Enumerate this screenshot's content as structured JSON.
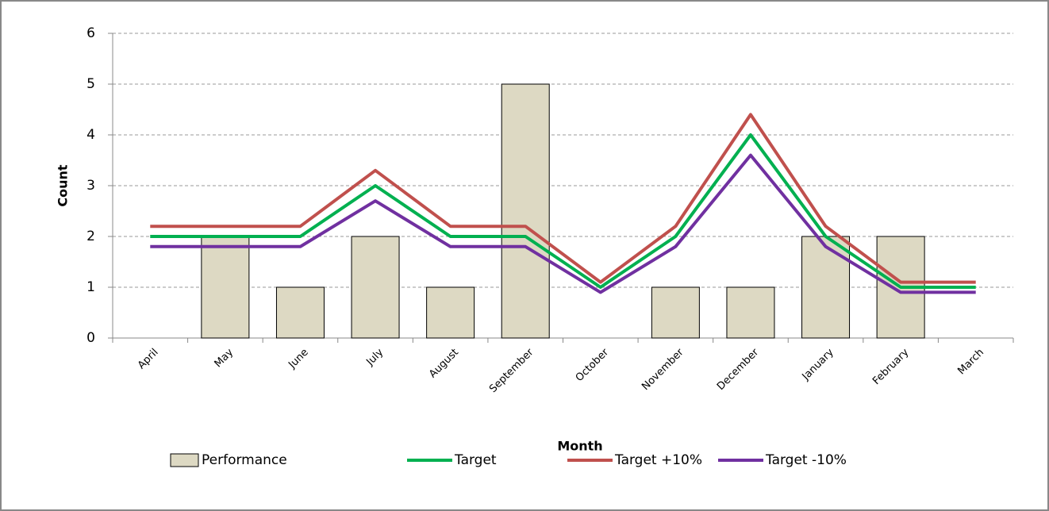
{
  "chart_data": {
    "type": "bar",
    "x_label": "Month",
    "y_label": "Count",
    "categories": [
      "April",
      "May",
      "June",
      "July",
      "August",
      "September",
      "October",
      "November",
      "December",
      "January",
      "February",
      "March"
    ],
    "series": [
      {
        "name": "Performance",
        "type": "bar",
        "color": "#ddd9c3",
        "values": [
          0,
          2,
          1,
          2,
          1,
          5,
          0,
          1,
          1,
          2,
          2,
          0
        ]
      },
      {
        "name": "Target",
        "type": "line",
        "color": "#00b050",
        "values": [
          2,
          2,
          2,
          3,
          2,
          2,
          1,
          2,
          4,
          2,
          1,
          1
        ]
      },
      {
        "name": "Target +10%",
        "type": "line",
        "color": "#c0504d",
        "values": [
          2.2,
          2.2,
          2.2,
          3.3,
          2.2,
          2.2,
          1.1,
          2.2,
          4.4,
          2.2,
          1.1,
          1.1
        ]
      },
      {
        "name": "Target -10%",
        "type": "line",
        "color": "#7030a0",
        "values": [
          1.8,
          1.8,
          1.8,
          2.7,
          1.8,
          1.8,
          0.9,
          1.8,
          3.6,
          1.8,
          0.9,
          0.9
        ]
      }
    ],
    "ylim": [
      0,
      6
    ],
    "yticks": [
      0,
      1,
      2,
      3,
      4,
      5,
      6
    ],
    "grid": true,
    "legend": "bottom"
  }
}
